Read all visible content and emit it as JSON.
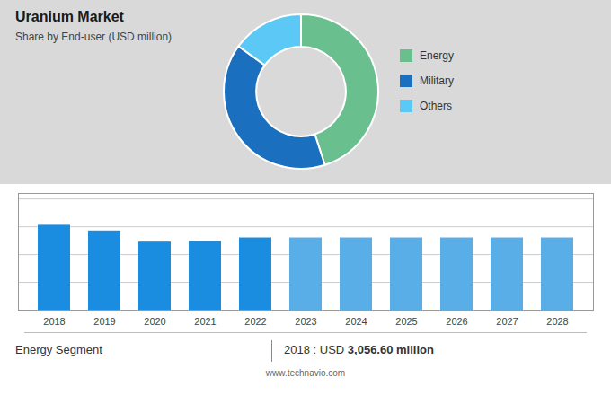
{
  "chart_data": [
    {
      "type": "pie",
      "title": "Uranium Market",
      "subtitle": "Share by End-user (USD million)",
      "categories": [
        "Energy",
        "Military",
        "Others"
      ],
      "values": [
        45,
        40,
        15
      ],
      "colors": [
        "#6abf8e",
        "#1b6fbf",
        "#5bc8f5"
      ],
      "legend": "right"
    },
    {
      "type": "bar",
      "categories": [
        "2018",
        "2019",
        "2020",
        "2021",
        "2022",
        "2023",
        "2024",
        "2025",
        "2026",
        "2027",
        "2028"
      ],
      "values": [
        3056.6,
        2850,
        2450,
        2470,
        2600,
        2600,
        2600,
        2600,
        2600,
        2600,
        2600
      ],
      "colors": [
        "#1b8de0",
        "#1b8de0",
        "#1b8de0",
        "#1b8de0",
        "#1b8de0",
        "#5aaee8",
        "#5aaee8",
        "#5aaee8",
        "#5aaee8",
        "#5aaee8",
        "#5aaee8"
      ],
      "ylim": [
        0,
        4200
      ],
      "yticks": [
        0,
        1000,
        2000,
        3000,
        4000
      ],
      "grid": true,
      "tick_labels": "x",
      "annotations": [
        "Energy Segment",
        "2018 : USD ",
        "3,056.60 million",
        "www.technavio.com"
      ]
    }
  ]
}
